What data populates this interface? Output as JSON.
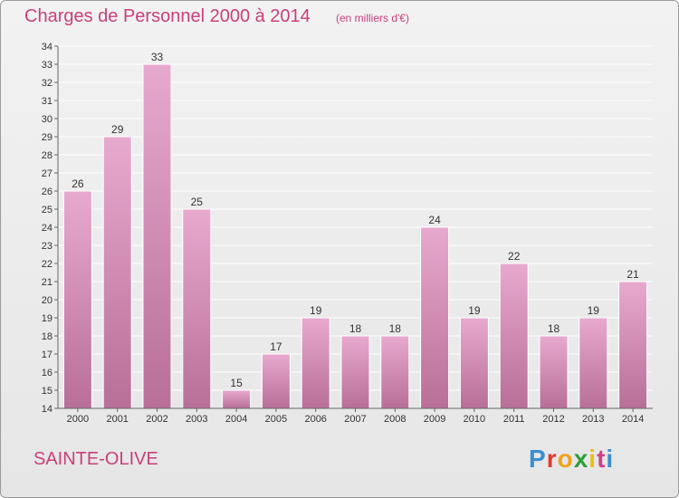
{
  "title": "Charges de Personnel 2000 à 2014",
  "subtitle": "(en milliers d'€)",
  "place": "SAINTE-OLIVE",
  "logo": "Proxiti",
  "colors": {
    "bar_light": "#e8a9cf",
    "bar_dark": "#b86f98",
    "accent": "#c8407a",
    "logo": [
      "#3a8fd0",
      "#e03b2f",
      "#f0a31c",
      "#2e9e3b",
      "#e8c020",
      "#d0408a",
      "#3a8fd0"
    ]
  },
  "chart_data": {
    "type": "bar",
    "categories": [
      "2000",
      "2001",
      "2002",
      "2003",
      "2004",
      "2005",
      "2006",
      "2007",
      "2008",
      "2009",
      "2010",
      "2011",
      "2012",
      "2013",
      "2014"
    ],
    "values": [
      26,
      29,
      33,
      25,
      15,
      17,
      19,
      18,
      18,
      24,
      19,
      22,
      18,
      19,
      21
    ],
    "ylim": [
      14,
      34
    ],
    "yticks": [
      14,
      15,
      16,
      17,
      18,
      19,
      20,
      21,
      22,
      23,
      24,
      25,
      26,
      27,
      28,
      29,
      30,
      31,
      32,
      33,
      34
    ],
    "grid": true
  }
}
